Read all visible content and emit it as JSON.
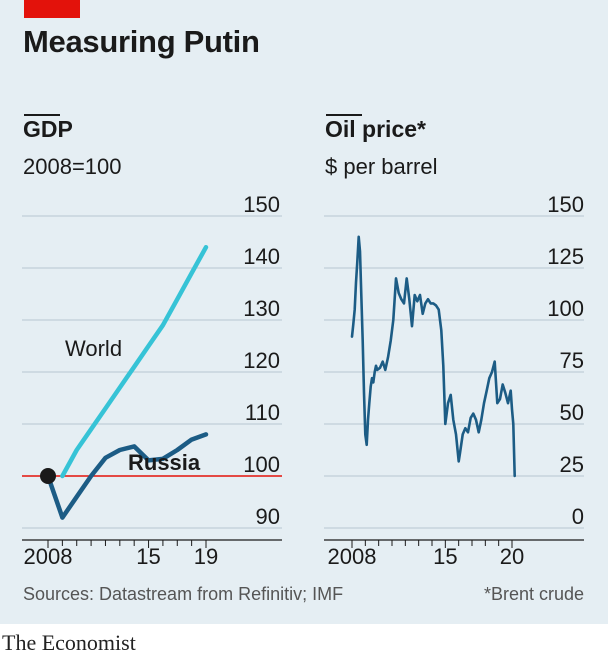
{
  "header": {
    "title": "Measuring Putin"
  },
  "chart_data": [
    {
      "type": "line",
      "title": "GDP",
      "subtitle": "2008=100",
      "xlabel": "",
      "ylabel": "",
      "xlim": [
        2008,
        2019
      ],
      "ylim": [
        90,
        150
      ],
      "x_ticks": [
        2008,
        2015,
        2019
      ],
      "x_tick_labels": [
        "2008",
        "15",
        "19"
      ],
      "y_ticks": [
        90,
        100,
        110,
        120,
        130,
        140,
        150
      ],
      "grid": true,
      "baseline": 100,
      "series": [
        {
          "name": "World",
          "color": "#36c3d6",
          "x": [
            2009,
            2010,
            2011,
            2012,
            2013,
            2014,
            2015,
            2016,
            2017,
            2018,
            2019
          ],
          "y": [
            100,
            105,
            109,
            113,
            117,
            121,
            125,
            129,
            134,
            139,
            144
          ]
        },
        {
          "name": "Russia",
          "color": "#1c5c85",
          "x": [
            2008,
            2009,
            2010,
            2011,
            2012,
            2013,
            2014,
            2015,
            2016,
            2017,
            2018,
            2019
          ],
          "y": [
            100,
            92,
            96,
            100,
            103.5,
            105,
            105.7,
            103,
            103.3,
            105,
            107,
            108
          ]
        }
      ],
      "start_marker": {
        "x": 2008,
        "y": 100
      },
      "annotations": [
        "World",
        "Russia"
      ]
    },
    {
      "type": "line",
      "title": "Oil price*",
      "subtitle": "$ per barrel",
      "xlabel": "",
      "ylabel": "",
      "xlim": [
        2008,
        2020
      ],
      "ylim": [
        0,
        150
      ],
      "x_ticks": [
        2008,
        2015,
        2020
      ],
      "x_tick_labels": [
        "2008",
        "15",
        "20"
      ],
      "y_ticks": [
        0,
        25,
        50,
        75,
        100,
        125,
        150
      ],
      "grid": true,
      "series": [
        {
          "name": "Brent crude",
          "color": "#1c5c85",
          "x": [
            2008.0,
            2008.1,
            2008.2,
            2008.3,
            2008.4,
            2008.5,
            2008.6,
            2008.7,
            2008.8,
            2008.9,
            2009.0,
            2009.1,
            2009.2,
            2009.3,
            2009.4,
            2009.5,
            2009.6,
            2009.7,
            2009.8,
            2009.9,
            2010.1,
            2010.3,
            2010.5,
            2010.7,
            2010.9,
            2011.1,
            2011.3,
            2011.5,
            2011.7,
            2011.9,
            2012.1,
            2012.3,
            2012.5,
            2012.7,
            2012.9,
            2013.1,
            2013.3,
            2013.5,
            2013.7,
            2013.9,
            2014.1,
            2014.3,
            2014.5,
            2014.7,
            2014.85,
            2015.0,
            2015.2,
            2015.4,
            2015.6,
            2015.8,
            2016.0,
            2016.1,
            2016.3,
            2016.5,
            2016.7,
            2016.9,
            2017.1,
            2017.3,
            2017.5,
            2017.7,
            2017.9,
            2018.1,
            2018.3,
            2018.5,
            2018.7,
            2018.9,
            2019.1,
            2019.3,
            2019.5,
            2019.7,
            2019.9,
            2020.0,
            2020.1,
            2020.2
          ],
          "y": [
            92,
            98,
            105,
            118,
            128,
            140,
            133,
            112,
            90,
            65,
            45,
            40,
            52,
            60,
            68,
            72,
            70,
            75,
            78,
            76,
            77,
            80,
            76,
            82,
            90,
            100,
            120,
            113,
            110,
            108,
            120,
            110,
            97,
            112,
            109,
            112,
            103,
            108,
            110,
            108,
            108,
            107,
            105,
            95,
            78,
            50,
            60,
            64,
            52,
            45,
            32,
            36,
            45,
            48,
            46,
            53,
            55,
            52,
            46,
            52,
            60,
            66,
            72,
            75,
            80,
            60,
            62,
            69,
            65,
            60,
            66,
            57,
            50,
            25
          ]
        }
      ]
    }
  ],
  "source": "Sources: Datastream from Refinitiv; IMF",
  "footnote": "*Brent crude",
  "brand": "The Economist"
}
